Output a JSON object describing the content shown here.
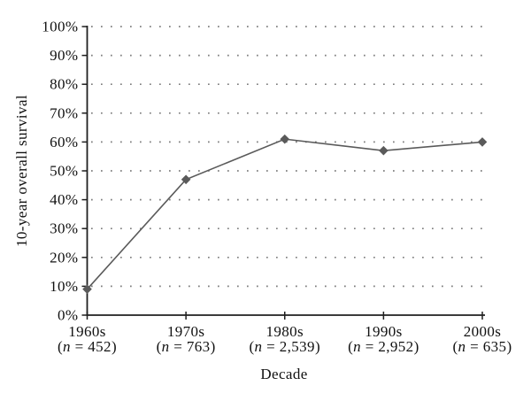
{
  "figure": {
    "background": "#ffffff"
  },
  "chart_data": {
    "type": "line",
    "title": "",
    "xlabel": "Decade",
    "ylabel": "10-year overall survival",
    "categories": [
      "1960s",
      "1970s",
      "1980s",
      "1990s",
      "2000s"
    ],
    "category_sublabels": [
      "(n = 452)",
      "(n = 763)",
      "(n = 2,539)",
      "(n = 2,952)",
      "(n = 635)"
    ],
    "n_values": [
      452,
      763,
      2539,
      2952,
      635
    ],
    "series": [
      {
        "name": "10-year overall survival",
        "values": [
          9,
          47,
          61,
          57,
          60
        ]
      }
    ],
    "value_unit": "%",
    "ylim": [
      0,
      100
    ],
    "ytick_step": 10,
    "ytick_labels": [
      "0%",
      "10%",
      "20%",
      "30%",
      "40%",
      "50%",
      "60%",
      "70%",
      "80%",
      "90%",
      "100%"
    ],
    "grid": "dotted-horizontal",
    "legend": "none",
    "marker": "diamond",
    "line_color": "#5a5a5a",
    "marker_color": "#5a5a5a",
    "axis_color": "#1f1f1f",
    "grid_color": "#7e7e7e",
    "text_color": "#111111"
  }
}
